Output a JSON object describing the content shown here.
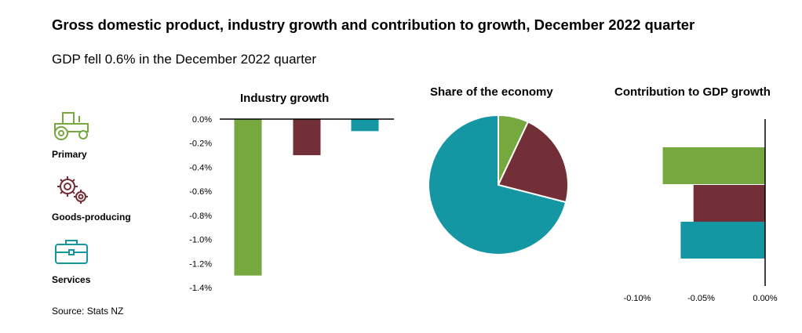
{
  "title": "Gross domestic product, industry growth and contribution to growth, December 2022 quarter",
  "subtitle": "GDP fell 0.6% in the December 2022 quarter",
  "source": "Source: Stats NZ",
  "legend": [
    {
      "label": "Primary",
      "icon": "tractor-icon",
      "color": "#76a840"
    },
    {
      "label": "Goods-producing",
      "icon": "gears-icon",
      "color": "#722f37"
    },
    {
      "label": "Services",
      "icon": "briefcase-icon",
      "color": "#1497a3"
    }
  ],
  "chart_data": [
    {
      "type": "bar",
      "title": "Industry growth",
      "categories": [
        "Primary",
        "Goods-producing",
        "Services"
      ],
      "values": [
        -1.3,
        -0.3,
        -0.1
      ],
      "colors": [
        "#76a840",
        "#722f37",
        "#1497a3"
      ],
      "ylim": [
        -1.4,
        0.0
      ],
      "yticks": [
        0.0,
        -0.2,
        -0.4,
        -0.6,
        -0.8,
        -1.0,
        -1.2,
        -1.4
      ],
      "ytick_labels": [
        "0.0%",
        "-0.2%",
        "-0.4%",
        "-0.6%",
        "-0.8%",
        "-1.0%",
        "-1.2%",
        "-1.4%"
      ]
    },
    {
      "type": "pie",
      "title": "Share of the economy",
      "categories": [
        "Primary",
        "Goods-producing",
        "Services"
      ],
      "values": [
        7,
        22,
        71
      ],
      "colors": [
        "#76a840",
        "#722f37",
        "#1497a3"
      ]
    },
    {
      "type": "bar",
      "orientation": "horizontal",
      "title": "Contribution to GDP growth",
      "categories": [
        "Primary",
        "Goods-producing",
        "Services"
      ],
      "values": [
        -0.08,
        -0.056,
        -0.066
      ],
      "colors": [
        "#76a840",
        "#722f37",
        "#1497a3"
      ],
      "xlim": [
        -0.1,
        0.0
      ],
      "xticks": [
        -0.1,
        -0.05,
        0.0
      ],
      "xtick_labels": [
        "-0.10%",
        "-0.05%",
        "0.00%"
      ]
    }
  ]
}
